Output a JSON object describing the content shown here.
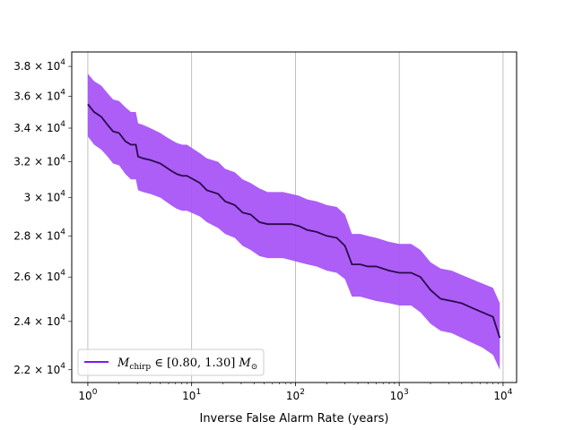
{
  "chart_data": {
    "type": "area",
    "xlabel": "Inverse False Alarm Rate (years)",
    "ylabel": "",
    "title": "",
    "x_scale": "log",
    "y_scale": "log",
    "xlim": [
      0.7,
      13500
    ],
    "ylim": [
      21500,
      39000
    ],
    "x_ticks": [
      {
        "value": 1,
        "label": "10^0"
      },
      {
        "value": 10,
        "label": "10^1"
      },
      {
        "value": 100,
        "label": "10^2"
      },
      {
        "value": 1000,
        "label": "10^3"
      },
      {
        "value": 10000,
        "label": "10^4"
      }
    ],
    "y_ticks": [
      {
        "value": 22000,
        "label": "2.2 × 10^4"
      },
      {
        "value": 24000,
        "label": "2.4 × 10^4"
      },
      {
        "value": 26000,
        "label": "2.6 × 10^4"
      },
      {
        "value": 28000,
        "label": "2.8 × 10^4"
      },
      {
        "value": 30000,
        "label": "3 × 10^4"
      },
      {
        "value": 32000,
        "label": "3.2 × 10^4"
      },
      {
        "value": 34000,
        "label": "3.4 × 10^4"
      },
      {
        "value": 36000,
        "label": "3.6 × 10^4"
      },
      {
        "value": 38000,
        "label": "3.8 × 10^4"
      }
    ],
    "grid": "vertical major x gridlines",
    "legend_position": "lower-left",
    "series": [
      {
        "name": "M_chirp ∈ [0.80, 1.30] M_⊙",
        "line_color": "#2a0a4a",
        "band_color": "#a855f7",
        "legend_color": "#7c1bf2",
        "x": [
          1.0,
          1.15,
          1.35,
          1.55,
          1.75,
          2.0,
          2.3,
          2.6,
          2.9,
          3.05,
          3.4,
          4.0,
          5.0,
          5.6,
          6.3,
          7.2,
          8.1,
          9.0,
          12.0,
          14.0,
          18.0,
          21.0,
          26.0,
          31.0,
          37.0,
          45.0,
          54.0,
          64.0,
          76.0,
          91.0,
          108.0,
          130.0,
          160.0,
          200.0,
          250.0,
          300.0,
          350.0,
          420.0,
          500.0,
          600.0,
          800.0,
          1000.0,
          1300.0,
          1600.0,
          2000.0,
          2500.0,
          3200.0,
          4000.0,
          5000.0,
          6300.0,
          8000.0,
          9300.0
        ],
        "y": [
          35500,
          35000,
          34700,
          34200,
          33800,
          33700,
          33200,
          33000,
          33000,
          32300,
          32200,
          32100,
          31900,
          31700,
          31500,
          31300,
          31200,
          31200,
          30800,
          30400,
          30200,
          29800,
          29600,
          29200,
          29100,
          28700,
          28600,
          28600,
          28600,
          28600,
          28500,
          28300,
          28200,
          28000,
          27900,
          27500,
          26600,
          26600,
          26500,
          26500,
          26300,
          26200,
          26200,
          26000,
          25400,
          25000,
          24900,
          24800,
          24600,
          24400,
          24200,
          23300
        ],
        "upper": [
          37500,
          37000,
          36700,
          36200,
          35800,
          35700,
          35300,
          35000,
          35000,
          34300,
          34200,
          34000,
          33700,
          33500,
          33300,
          33100,
          33000,
          33000,
          32500,
          32200,
          32000,
          31600,
          31400,
          31000,
          30800,
          30500,
          30300,
          30300,
          30300,
          30200,
          30100,
          29900,
          29800,
          29600,
          29500,
          29100,
          28100,
          28100,
          28000,
          27900,
          27700,
          27600,
          27600,
          27300,
          26700,
          26400,
          26300,
          26100,
          25900,
          25700,
          25500,
          24800
        ],
        "lower": [
          33500,
          33000,
          32700,
          32300,
          31900,
          31800,
          31300,
          31000,
          31000,
          30400,
          30300,
          30200,
          30000,
          29800,
          29600,
          29400,
          29300,
          29300,
          29000,
          28700,
          28400,
          28100,
          27900,
          27500,
          27300,
          27000,
          26900,
          26900,
          26900,
          26800,
          26700,
          26600,
          26500,
          26300,
          26200,
          25900,
          25100,
          25100,
          25000,
          24900,
          24800,
          24700,
          24700,
          24400,
          23900,
          23600,
          23500,
          23300,
          23100,
          22900,
          22600,
          22000
        ]
      }
    ]
  }
}
